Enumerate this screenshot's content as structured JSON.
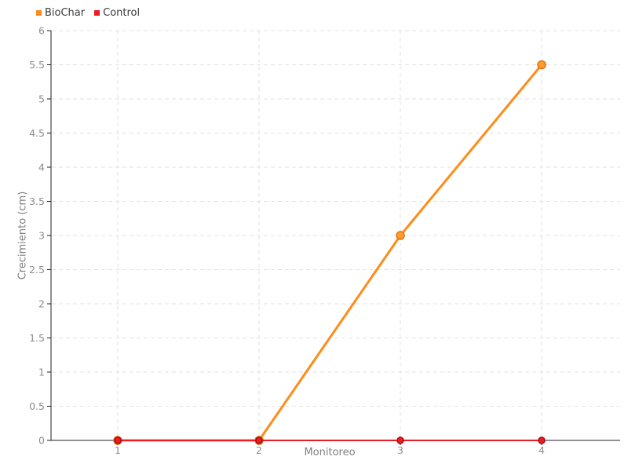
{
  "chart_data": {
    "type": "line",
    "x": [
      1,
      2,
      3,
      4
    ],
    "xticks": [
      1,
      2,
      3,
      4
    ],
    "series": [
      {
        "name": "BioChar",
        "values": [
          0,
          0,
          3,
          5.5
        ],
        "color": "#ff8c1a",
        "marker_fill": "#ff9a2e",
        "marker_stroke": "#e0740f",
        "line_width": 3,
        "marker_radius": 5
      },
      {
        "name": "Control",
        "values": [
          0,
          0,
          0,
          0
        ],
        "color": "#ed1c24",
        "marker_fill": "#ed1c24",
        "marker_stroke": "#a50d12",
        "line_width": 2,
        "marker_radius": 4
      }
    ],
    "title": "",
    "xlabel": "Monitoreo",
    "ylabel": "Crecimiento (cm)",
    "ylim": [
      0,
      6
    ],
    "ytick_step": 0.5,
    "grid": "dashed",
    "legend_position": "top-left",
    "colors": {
      "axis": "#222222",
      "grid": "#e2e2e2",
      "tick_label": "#8c8c8c",
      "axis_label": "#808080",
      "legend_text": "#3a3a3a",
      "background": "#ffffff"
    }
  }
}
